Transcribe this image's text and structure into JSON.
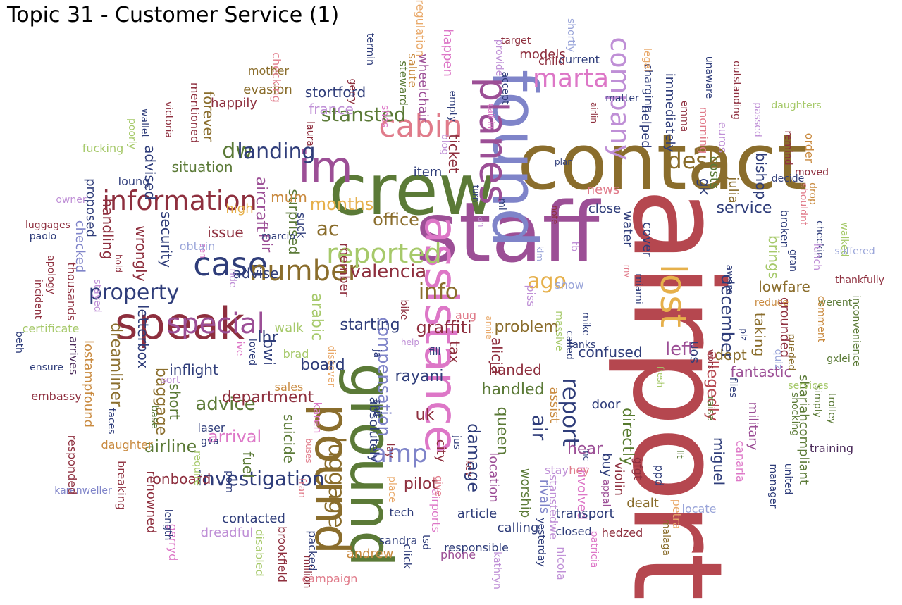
{
  "title": "Topic 31 - Customer Service (1)",
  "palette": {
    "red": "#b5474f",
    "olive": "#5b7a37",
    "purple": "#9c4f96",
    "brown": "#8a6d2c",
    "blue": "#7f84c9",
    "navy": "#2f3d7a",
    "gold": "#e6b04b",
    "pink": "#dd77c7",
    "lime": "#a6c96a",
    "maroon": "#8e2f3e",
    "mauve": "#bf8fd6",
    "orange": "#c98a3f",
    "green": "#567a2d",
    "teal": "#6f9d9a",
    "rose": "#e07b8a",
    "lightblue": "#9aa5d9",
    "peach": "#e9a96a",
    "dark": "#4a2a5a"
  },
  "words": [
    {
      "t": "airport"
    },
    {
      "t": "contact"
    },
    {
      "t": "staff"
    },
    {
      "t": "crew"
    },
    {
      "t": "ground"
    },
    {
      "t": "found"
    },
    {
      "t": "pound"
    },
    {
      "t": "im"
    },
    {
      "t": "assistance"
    },
    {
      "t": "speak"
    },
    {
      "t": "lost"
    },
    {
      "t": "planes"
    },
    {
      "t": "cabin"
    },
    {
      "t": "case"
    },
    {
      "t": "information"
    },
    {
      "t": "special"
    },
    {
      "t": "number"
    },
    {
      "t": "reported"
    },
    {
      "t": "company"
    },
    {
      "t": "marta"
    },
    {
      "t": "desk"
    },
    {
      "t": "luggage"
    },
    {
      "t": "amp"
    },
    {
      "t": "property"
    },
    {
      "t": "report"
    },
    {
      "t": "info"
    },
    {
      "t": "dw"
    },
    {
      "t": "stansted"
    },
    {
      "t": "landing"
    },
    {
      "t": "ac"
    },
    {
      "t": "valencia"
    },
    {
      "t": "months"
    },
    {
      "t": "office"
    },
    {
      "t": "compensation"
    },
    {
      "t": "graffiti"
    },
    {
      "t": "ago"
    },
    {
      "t": "left"
    },
    {
      "t": "december"
    },
    {
      "t": "advice"
    },
    {
      "t": "department"
    },
    {
      "t": "investigation"
    },
    {
      "t": "airline"
    },
    {
      "t": "arrival"
    },
    {
      "t": "air"
    },
    {
      "t": "damage"
    },
    {
      "t": "problem"
    },
    {
      "t": "service"
    },
    {
      "t": "handled"
    },
    {
      "t": "board"
    },
    {
      "t": "starting"
    },
    {
      "t": "rayani"
    },
    {
      "t": "uk"
    },
    {
      "t": "pilot"
    },
    {
      "t": "queen"
    },
    {
      "t": "hear"
    },
    {
      "t": "directly"
    },
    {
      "t": "dept"
    },
    {
      "t": "confused"
    },
    {
      "t": "taking"
    },
    {
      "t": "allegedly"
    },
    {
      "t": "fantastic"
    },
    {
      "t": "brings"
    },
    {
      "t": "lowfare"
    },
    {
      "t": "grounded"
    },
    {
      "t": "arabic"
    },
    {
      "t": "lhr"
    },
    {
      "t": "bwi"
    },
    {
      "t": "advise"
    },
    {
      "t": "handling"
    },
    {
      "t": "baggage"
    },
    {
      "t": "dreamliner"
    },
    {
      "t": "letterbox"
    },
    {
      "t": "security"
    },
    {
      "t": "wrongly"
    },
    {
      "t": "inflight"
    },
    {
      "t": "short"
    },
    {
      "t": "fuel"
    },
    {
      "t": "suicide"
    },
    {
      "t": "surprised"
    },
    {
      "t": "situation"
    },
    {
      "t": "advised"
    },
    {
      "t": "france"
    },
    {
      "t": "ticket"
    },
    {
      "t": "item"
    },
    {
      "t": "tax"
    },
    {
      "t": "alicja"
    },
    {
      "t": "handed"
    },
    {
      "t": "aircraft"
    },
    {
      "t": "pir"
    },
    {
      "t": "issue"
    },
    {
      "t": "mum"
    },
    {
      "t": "high"
    },
    {
      "t": "forever"
    },
    {
      "t": "happily"
    },
    {
      "t": "stortford"
    },
    {
      "t": "evasion"
    },
    {
      "t": "gk"
    },
    {
      "t": "julia"
    },
    {
      "t": "costs"
    },
    {
      "t": "bishop"
    },
    {
      "t": "helped"
    },
    {
      "t": "immediately"
    },
    {
      "t": "charging"
    },
    {
      "t": "morning"
    },
    {
      "t": "euros"
    },
    {
      "t": "water"
    },
    {
      "t": "close"
    },
    {
      "t": "news"
    },
    {
      "t": "cover"
    },
    {
      "t": "uos"
    },
    {
      "t": "miguel"
    },
    {
      "t": "military"
    },
    {
      "t": "shariahcompliant"
    },
    {
      "t": "training"
    },
    {
      "t": "canaria"
    },
    {
      "t": "manager"
    },
    {
      "t": "united"
    },
    {
      "t": "assist"
    },
    {
      "t": "door"
    },
    {
      "t": "buy"
    },
    {
      "t": "rivals"
    },
    {
      "t": "involved"
    },
    {
      "t": "transport"
    },
    {
      "t": "closed"
    },
    {
      "t": "hedzed"
    },
    {
      "t": "dealt"
    },
    {
      "t": "locate"
    },
    {
      "t": "petra"
    },
    {
      "t": "malaga"
    },
    {
      "t": "violin"
    },
    {
      "t": "gfgt"
    },
    {
      "t": "ppd"
    },
    {
      "t": "stay"
    },
    {
      "t": "hey"
    },
    {
      "t": "appal"
    },
    {
      "t": "patricia"
    },
    {
      "t": "nicola"
    },
    {
      "t": "calling"
    },
    {
      "t": "worship"
    },
    {
      "t": "stanstedwe"
    },
    {
      "t": "yesterday"
    },
    {
      "t": "article"
    },
    {
      "t": "location"
    },
    {
      "t": "responsible"
    },
    {
      "t": "phone"
    },
    {
      "t": "kathryn"
    },
    {
      "t": "sandra"
    },
    {
      "t": "andrew"
    },
    {
      "t": "airports"
    },
    {
      "t": "tech"
    },
    {
      "t": "campaign"
    },
    {
      "t": "million"
    },
    {
      "t": "packed"
    },
    {
      "t": "click"
    },
    {
      "t": "tsd"
    },
    {
      "t": "absolutely"
    },
    {
      "t": "shit"
    },
    {
      "t": "lay"
    },
    {
      "t": "city"
    },
    {
      "t": "give"
    },
    {
      "t": "place"
    },
    {
      "t": "kev"
    },
    {
      "t": "jus"
    },
    {
      "t": "contacted"
    },
    {
      "t": "onboard"
    },
    {
      "t": "renowned"
    },
    {
      "t": "dreadful"
    },
    {
      "t": "brookfield"
    },
    {
      "t": "disabled"
    },
    {
      "t": "gerryd"
    },
    {
      "t": "length"
    },
    {
      "t": "karenweller"
    },
    {
      "t": "breaking"
    },
    {
      "t": "daughter"
    },
    {
      "t": "responded"
    },
    {
      "t": "faces"
    },
    {
      "t": "base"
    },
    {
      "t": "laser"
    },
    {
      "t": "gva"
    },
    {
      "t": "sort"
    },
    {
      "t": "embassy"
    },
    {
      "t": "lostampfound"
    },
    {
      "t": "ensure"
    },
    {
      "t": "arrives"
    },
    {
      "t": "beth"
    },
    {
      "t": "certificate"
    },
    {
      "t": "incident"
    },
    {
      "t": "thousands"
    },
    {
      "t": "apology"
    },
    {
      "t": "paolo"
    },
    {
      "t": "checked"
    },
    {
      "t": "luggages"
    },
    {
      "t": "proposed"
    },
    {
      "t": "owner"
    },
    {
      "t": "loung"
    },
    {
      "t": "fucking"
    },
    {
      "t": "wallet"
    },
    {
      "t": "poorly"
    },
    {
      "t": "victoria"
    },
    {
      "t": "mentioned"
    },
    {
      "t": "checking"
    },
    {
      "t": "mother"
    },
    {
      "t": "laura"
    },
    {
      "t": "gerry"
    },
    {
      "t": "shes"
    },
    {
      "t": "steward"
    },
    {
      "t": "wheelchair"
    },
    {
      "t": "salute"
    },
    {
      "t": "happen"
    },
    {
      "t": "regulation"
    },
    {
      "t": "termin"
    },
    {
      "t": "empty"
    },
    {
      "t": "blog"
    },
    {
      "t": "provide"
    },
    {
      "t": "accept"
    },
    {
      "t": "caitlin"
    },
    {
      "t": "target"
    },
    {
      "t": "models"
    },
    {
      "t": "child"
    },
    {
      "t": "current"
    },
    {
      "t": "shortly"
    },
    {
      "t": "legal"
    },
    {
      "t": "matter"
    },
    {
      "t": "airlin"
    },
    {
      "t": "unaware"
    },
    {
      "t": "emma"
    },
    {
      "t": "outstanding"
    },
    {
      "t": "passed"
    },
    {
      "t": "daughters"
    },
    {
      "t": "remind"
    },
    {
      "t": "order"
    },
    {
      "t": "moved"
    },
    {
      "t": "decide"
    },
    {
      "t": "drop"
    },
    {
      "t": "shouldnt"
    },
    {
      "t": "broken"
    },
    {
      "t": "checkin"
    },
    {
      "t": "walked"
    },
    {
      "t": "lunch"
    },
    {
      "t": "suffered"
    },
    {
      "t": "gran"
    },
    {
      "t": "thankfully"
    },
    {
      "t": "aware"
    },
    {
      "t": "werent"
    },
    {
      "t": "inconvenience"
    },
    {
      "t": "reduce"
    },
    {
      "t": "comment"
    },
    {
      "t": "quiz"
    },
    {
      "t": "gxlei"
    },
    {
      "t": "services"
    },
    {
      "t": "simply"
    },
    {
      "t": "trolley"
    },
    {
      "t": "shocking"
    },
    {
      "t": "pueded"
    },
    {
      "t": "plz"
    },
    {
      "t": "flies"
    },
    {
      "t": "raise"
    },
    {
      "t": "wors"
    },
    {
      "t": "fresh"
    },
    {
      "t": "llt"
    },
    {
      "t": "mc"
    },
    {
      "t": "called"
    },
    {
      "t": "mike"
    },
    {
      "t": "tanks"
    },
    {
      "t": "massive"
    },
    {
      "t": "show"
    },
    {
      "t": "piss"
    },
    {
      "t": "miami"
    },
    {
      "t": "mv"
    },
    {
      "t": "klm"
    },
    {
      "t": "tb"
    },
    {
      "t": "note"
    },
    {
      "t": "ml"
    },
    {
      "t": "ah"
    },
    {
      "t": "turn"
    },
    {
      "t": "plan"
    },
    {
      "t": "annie"
    },
    {
      "t": "aug"
    },
    {
      "t": "member"
    },
    {
      "t": "bike"
    },
    {
      "t": "help"
    },
    {
      "t": "discover"
    },
    {
      "t": "ja"
    },
    {
      "t": "fill"
    },
    {
      "t": "brad"
    },
    {
      "t": "sales"
    },
    {
      "t": "walk"
    },
    {
      "t": "ive"
    },
    {
      "t": "loved"
    },
    {
      "t": "ride"
    },
    {
      "t": "sen"
    },
    {
      "t": "marcio"
    },
    {
      "t": "stayed"
    },
    {
      "t": "hold"
    },
    {
      "t": "obtain"
    },
    {
      "t": "suck"
    },
    {
      "t": "require"
    },
    {
      "t": "porn"
    },
    {
      "t": "karen"
    },
    {
      "t": "buses"
    },
    {
      "t": "fran"
    }
  ]
}
